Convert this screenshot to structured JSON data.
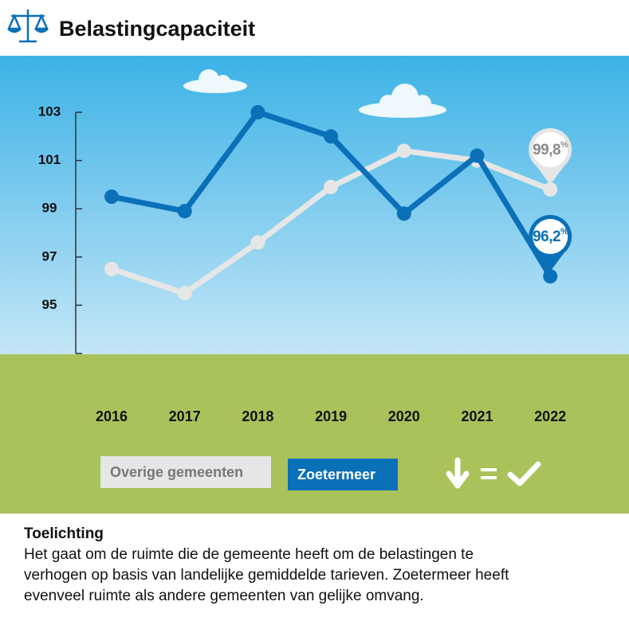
{
  "header": {
    "title": "Belastingcapaciteit"
  },
  "chart_data": {
    "type": "line",
    "categories": [
      "2016",
      "2017",
      "2018",
      "2019",
      "2020",
      "2021",
      "2022"
    ],
    "series": [
      {
        "name": "Overige gemeenten",
        "color": "#e6e6e6",
        "values": [
          96.5,
          95.5,
          97.6,
          99.9,
          101.4,
          101.0,
          99.8
        ],
        "value_labels": [
          null,
          null,
          null,
          null,
          null,
          null,
          "99,8%"
        ]
      },
      {
        "name": "Zoetermeer",
        "color": "#0a70b8",
        "values": [
          99.5,
          98.9,
          103.0,
          102.0,
          98.8,
          101.2,
          96.2
        ],
        "value_labels": [
          null,
          null,
          null,
          null,
          null,
          null,
          "96,2%"
        ]
      }
    ],
    "ylim": [
      93,
      103
    ],
    "yticks": [
      95,
      97,
      99,
      101,
      103
    ]
  },
  "footer": {
    "heading": "Toelichting",
    "text_lines": [
      "Het gaat om de ruimte die de gemeente heeft om de belastingen te",
      "verhogen op basis van landelijke gemiddelde tarieven. Zoetermeer heeft",
      "evenveel ruimte als andere gemeenten van gelijke omvang."
    ]
  }
}
